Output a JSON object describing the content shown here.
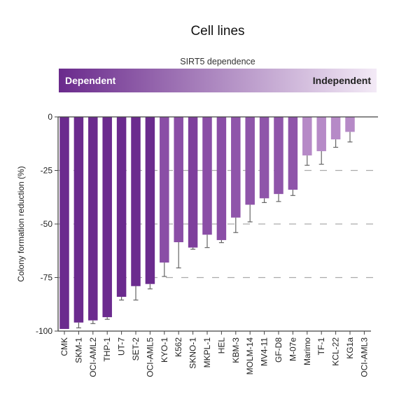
{
  "chart_data": {
    "type": "bar",
    "title": "Cell lines",
    "legend": {
      "title": "SIRT5 dependence",
      "left_label": "Dependent",
      "right_label": "Independent",
      "gradient": [
        "#6a2a8c",
        "#f3eaf6"
      ]
    },
    "ylabel": "Colony formation reduction (%)",
    "xlabel": "",
    "ylim": [
      -100,
      0
    ],
    "yticks": [
      0,
      -25,
      -50,
      -75,
      -100
    ],
    "ytick_labels": [
      "0",
      "-25",
      "-50",
      "-75",
      "-100"
    ],
    "grid": "dashed horizontal at -25, -50, -75",
    "categories": [
      "CMK",
      "SKM-1",
      "OCI-AML2",
      "THP-1",
      "UT-7",
      "SET-2",
      "OCI-AML5",
      "KYO-1",
      "K562",
      "SKNO-1",
      "MKPL-1",
      "HEL",
      "KBM-3",
      "MOLM-14",
      "MV4-11",
      "GF-D8",
      "M-07e",
      "Marimo",
      "TF-1",
      "KCL-22",
      "KG1a",
      "OCI-AML3"
    ],
    "values": [
      -99,
      -96,
      -95,
      -93.5,
      -84,
      -79,
      -78,
      -68,
      -58.5,
      -61,
      -55,
      -57.5,
      -47,
      -41,
      -38,
      -36,
      -34,
      -18,
      -16,
      -10.5,
      -7,
      0
    ],
    "error": [
      0,
      2.5,
      1.5,
      1,
      1.5,
      6.5,
      2.3,
      6.5,
      12,
      0.8,
      6,
      1.2,
      7,
      8,
      2,
      3.5,
      2.7,
      4.6,
      6.1,
      3.7,
      4.7,
      0
    ],
    "colors": [
      "#6b2b8e",
      "#6b2b8e",
      "#6b2b8e",
      "#6b2b8e",
      "#6b2b8e",
      "#6b2b8e",
      "#6b2b8e",
      "#8a4ea6",
      "#8a4ea6",
      "#7e3f9c",
      "#8a4ea6",
      "#8a4ea6",
      "#8f55aa",
      "#8f55aa",
      "#8f55aa",
      "#8f55aa",
      "#8f55aa",
      "#b68ac7",
      "#b68ac7",
      "#b68ac7",
      "#b68ac7",
      "#b68ac7"
    ]
  }
}
